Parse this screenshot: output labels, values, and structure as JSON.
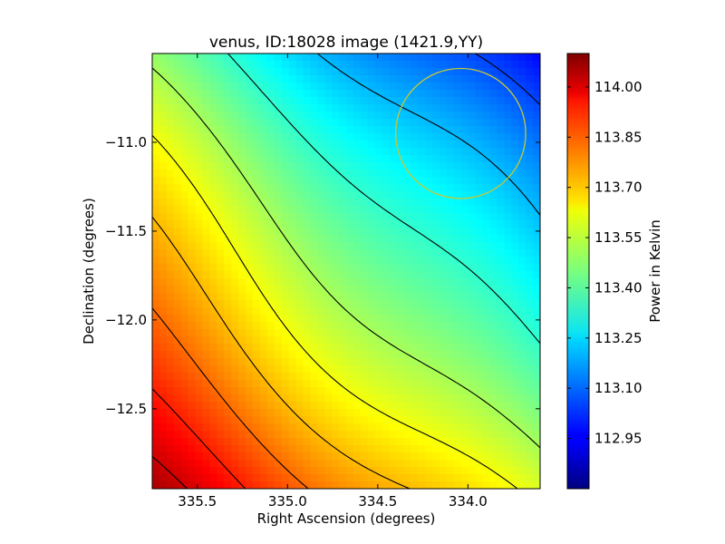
{
  "chart_data": {
    "type": "heatmap",
    "title": "venus, ID:18028 image (1421.9,YY)",
    "xlabel": "Right Ascension (degrees)",
    "ylabel": "Declination (degrees)",
    "colorbar_label": "Power in Kelvin",
    "colormap": "jet",
    "x_axis_inverted": true,
    "xlim": [
      335.75,
      333.6
    ],
    "ylim": [
      -12.95,
      -10.5
    ],
    "x_ticks": [
      335.5,
      335.0,
      334.5,
      334.0
    ],
    "x_tick_labels": [
      "335.5",
      "335.0",
      "334.5",
      "334.0"
    ],
    "y_ticks": [
      -11.0,
      -11.5,
      -12.0,
      -12.5
    ],
    "y_tick_labels": [
      "−11.0",
      "−11.5",
      "−12.0",
      "−12.5"
    ],
    "color_range": [
      112.8,
      114.1
    ],
    "colorbar_ticks": [
      112.95,
      113.1,
      113.25,
      113.4,
      113.55,
      113.7,
      113.85,
      114.0
    ],
    "colorbar_tick_labels": [
      "112.95",
      "113.10",
      "113.25",
      "113.40",
      "113.55",
      "113.70",
      "113.85",
      "114.00"
    ],
    "field_model": {
      "max_corner": [
        335.75,
        -12.95
      ],
      "max_value": 114.1,
      "min_corner": [
        333.6,
        -10.5
      ],
      "min_value": 112.8
    },
    "contour_levels": [
      112.9,
      113.05,
      113.2,
      113.35,
      113.5,
      113.6,
      113.7,
      113.8,
      113.9,
      114.0
    ],
    "contour_color": "#000000",
    "marker_circle": {
      "ra": 334.04,
      "dec": -10.95,
      "radius_deg": 0.36,
      "color": "#c8c832"
    },
    "grid": false
  }
}
